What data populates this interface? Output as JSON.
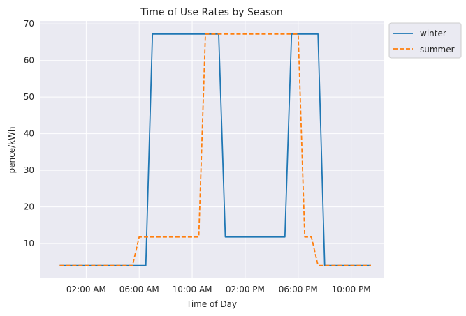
{
  "chart_data": {
    "type": "line",
    "title": "Time of Use Rates by Season",
    "xlabel": "Time of Day",
    "ylabel": "pence/kWh",
    "xlim": [
      -1.5,
      24.5
    ],
    "ylim": [
      0.5,
      70.8
    ],
    "x_ticks": [
      {
        "value": 2,
        "label": "02:00 AM"
      },
      {
        "value": 6,
        "label": "06:00 AM"
      },
      {
        "value": 10,
        "label": "10:00 AM"
      },
      {
        "value": 14,
        "label": "02:00 PM"
      },
      {
        "value": 18,
        "label": "06:00 PM"
      },
      {
        "value": 22,
        "label": "10:00 PM"
      }
    ],
    "y_ticks": [
      10,
      20,
      30,
      40,
      50,
      60,
      70
    ],
    "grid": true,
    "legend_position": "outside-top-right",
    "series": [
      {
        "name": "winter",
        "color": "#1f77b4",
        "dash": "solid",
        "x": [
          0,
          0.5,
          1,
          1.5,
          2,
          2.5,
          3,
          3.5,
          4,
          4.5,
          5,
          5.5,
          6,
          6.5,
          7,
          7.5,
          8,
          8.5,
          9,
          9.5,
          10,
          10.5,
          11,
          11.5,
          12,
          12.5,
          13,
          13.5,
          14,
          14.5,
          15,
          15.5,
          16,
          16.5,
          17,
          17.5,
          18,
          18.5,
          19,
          19.5,
          20,
          20.5,
          21,
          21.5,
          22,
          22.5,
          23,
          23.5
        ],
        "y": [
          4,
          4,
          4,
          4,
          4,
          4,
          4,
          4,
          4,
          4,
          4,
          4,
          4,
          4,
          67.2,
          67.2,
          67.2,
          67.2,
          67.2,
          67.2,
          67.2,
          67.2,
          67.2,
          67.2,
          67.2,
          11.8,
          11.8,
          11.8,
          11.8,
          11.8,
          11.8,
          11.8,
          11.8,
          11.8,
          11.8,
          67.2,
          67.2,
          67.2,
          67.2,
          67.2,
          4,
          4,
          4,
          4,
          4,
          4,
          4,
          4
        ]
      },
      {
        "name": "summer",
        "color": "#ff7f0e",
        "dash": "dashed",
        "x": [
          0,
          0.5,
          1,
          1.5,
          2,
          2.5,
          3,
          3.5,
          4,
          4.5,
          5,
          5.5,
          6,
          6.5,
          7,
          7.5,
          8,
          8.5,
          9,
          9.5,
          10,
          10.5,
          11,
          11.5,
          12,
          12.5,
          13,
          13.5,
          14,
          14.5,
          15,
          15.5,
          16,
          16.5,
          17,
          17.5,
          18,
          18.5,
          19,
          19.5,
          20,
          20.5,
          21,
          21.5,
          22,
          22.5,
          23,
          23.5
        ],
        "y": [
          4,
          4,
          4,
          4,
          4,
          4,
          4,
          4,
          4,
          4,
          4,
          4,
          11.8,
          11.8,
          11.8,
          11.8,
          11.8,
          11.8,
          11.8,
          11.8,
          11.8,
          11.8,
          67.2,
          67.2,
          67.2,
          67.2,
          67.2,
          67.2,
          67.2,
          67.2,
          67.2,
          67.2,
          67.2,
          67.2,
          67.2,
          67.2,
          67.2,
          11.8,
          11.8,
          4,
          4,
          4,
          4,
          4,
          4,
          4,
          4,
          4
        ]
      }
    ]
  }
}
